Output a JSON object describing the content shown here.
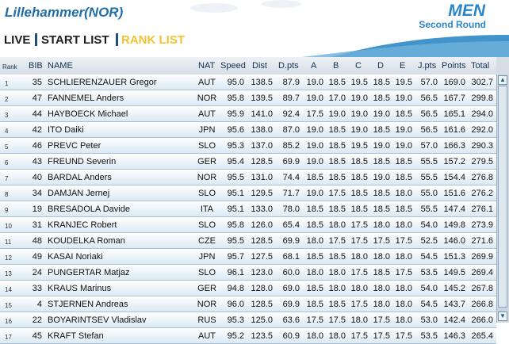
{
  "header": {
    "venue": "Lillehammer(NOR)",
    "gender": "MEN",
    "round": "Second Round"
  },
  "nav": {
    "live": "LIVE",
    "start_list": "START LIST",
    "rank_list": "RANK LIST"
  },
  "table": {
    "columns": [
      "Rank",
      "BIB",
      "NAME",
      "NAT",
      "Speed",
      "Dist",
      "D.pts",
      "A",
      "B",
      "C",
      "D",
      "E",
      "J.pts",
      "Points",
      "Total"
    ],
    "rows": [
      [
        "1",
        "35",
        "SCHLIERENZAUER Gregor",
        "AUT",
        "95.0",
        "138.5",
        "87.9",
        "19.0",
        "18.5",
        "19.5",
        "18.5",
        "19.5",
        "57.0",
        "169.0",
        "302.7"
      ],
      [
        "2",
        "47",
        "FANNEMEL Anders",
        "NOR",
        "95.8",
        "139.5",
        "89.7",
        "19.0",
        "17.0",
        "19.0",
        "18.5",
        "19.0",
        "56.5",
        "167.7",
        "299.8"
      ],
      [
        "3",
        "44",
        "HAYBOECK Michael",
        "AUT",
        "95.9",
        "141.0",
        "92.4",
        "17.5",
        "19.0",
        "19.0",
        "19.0",
        "18.5",
        "56.5",
        "165.1",
        "294.0"
      ],
      [
        "4",
        "42",
        "ITO Daiki",
        "JPN",
        "95.6",
        "138.0",
        "87.0",
        "19.0",
        "18.5",
        "19.0",
        "18.5",
        "19.0",
        "56.5",
        "161.6",
        "292.0"
      ],
      [
        "5",
        "46",
        "PREVC Peter",
        "SLO",
        "95.3",
        "137.0",
        "85.2",
        "19.0",
        "18.5",
        "19.5",
        "19.0",
        "19.0",
        "57.0",
        "166.3",
        "290.3"
      ],
      [
        "6",
        "43",
        "FREUND Severin",
        "GER",
        "95.4",
        "128.5",
        "69.9",
        "19.0",
        "18.5",
        "18.5",
        "18.5",
        "18.5",
        "55.5",
        "157.2",
        "279.5"
      ],
      [
        "7",
        "40",
        "BARDAL Anders",
        "NOR",
        "95.5",
        "131.0",
        "74.4",
        "18.5",
        "18.5",
        "18.5",
        "19.0",
        "18.5",
        "55.5",
        "154.4",
        "276.8"
      ],
      [
        "8",
        "34",
        "DAMJAN Jernej",
        "SLO",
        "95.1",
        "129.5",
        "71.7",
        "19.0",
        "17.5",
        "18.5",
        "18.5",
        "18.0",
        "55.0",
        "151.6",
        "276.2"
      ],
      [
        "9",
        "19",
        "BRESADOLA Davide",
        "ITA",
        "95.1",
        "133.0",
        "78.0",
        "18.5",
        "18.5",
        "18.5",
        "18.5",
        "18.5",
        "55.5",
        "147.4",
        "276.1"
      ],
      [
        "10",
        "31",
        "KRANJEC Robert",
        "SLO",
        "95.8",
        "126.0",
        "65.4",
        "18.5",
        "18.0",
        "17.5",
        "18.0",
        "18.0",
        "54.0",
        "149.8",
        "273.9"
      ],
      [
        "11",
        "48",
        "KOUDELKA Roman",
        "CZE",
        "95.5",
        "128.5",
        "69.9",
        "18.0",
        "17.5",
        "17.5",
        "17.5",
        "17.5",
        "52.5",
        "146.0",
        "271.6"
      ],
      [
        "12",
        "49",
        "KASAI Noriaki",
        "JPN",
        "95.7",
        "127.5",
        "68.1",
        "18.5",
        "18.5",
        "18.0",
        "18.0",
        "18.0",
        "54.5",
        "151.3",
        "269.9"
      ],
      [
        "13",
        "24",
        "PUNGERTAR Matjaz",
        "SLO",
        "96.1",
        "123.0",
        "60.0",
        "18.0",
        "18.0",
        "17.5",
        "18.5",
        "17.5",
        "53.5",
        "149.5",
        "269.4"
      ],
      [
        "14",
        "33",
        "KRAUS Marinus",
        "GER",
        "94.8",
        "128.0",
        "69.0",
        "18.5",
        "18.0",
        "18.0",
        "18.0",
        "18.0",
        "54.0",
        "145.2",
        "267.8"
      ],
      [
        "15",
        "4",
        "STJERNEN Andreas",
        "NOR",
        "96.0",
        "128.5",
        "69.9",
        "18.5",
        "18.5",
        "17.5",
        "18.0",
        "18.0",
        "54.5",
        "143.7",
        "266.8"
      ],
      [
        "16",
        "22",
        "BOYARINTSEV Vladislav",
        "RUS",
        "95.3",
        "125.0",
        "63.6",
        "17.5",
        "17.5",
        "18.0",
        "17.5",
        "18.0",
        "53.0",
        "142.4",
        "266.0"
      ],
      [
        "17",
        "45",
        "KRAFT Stefan",
        "AUT",
        "95.2",
        "123.5",
        "60.9",
        "18.0",
        "18.0",
        "17.5",
        "17.5",
        "17.5",
        "53.5",
        "146.3",
        "265.4"
      ]
    ]
  },
  "colors": {
    "accent": "#2a86c8",
    "rank_list_active": "#f2c230",
    "title": "#1f6ea8"
  }
}
